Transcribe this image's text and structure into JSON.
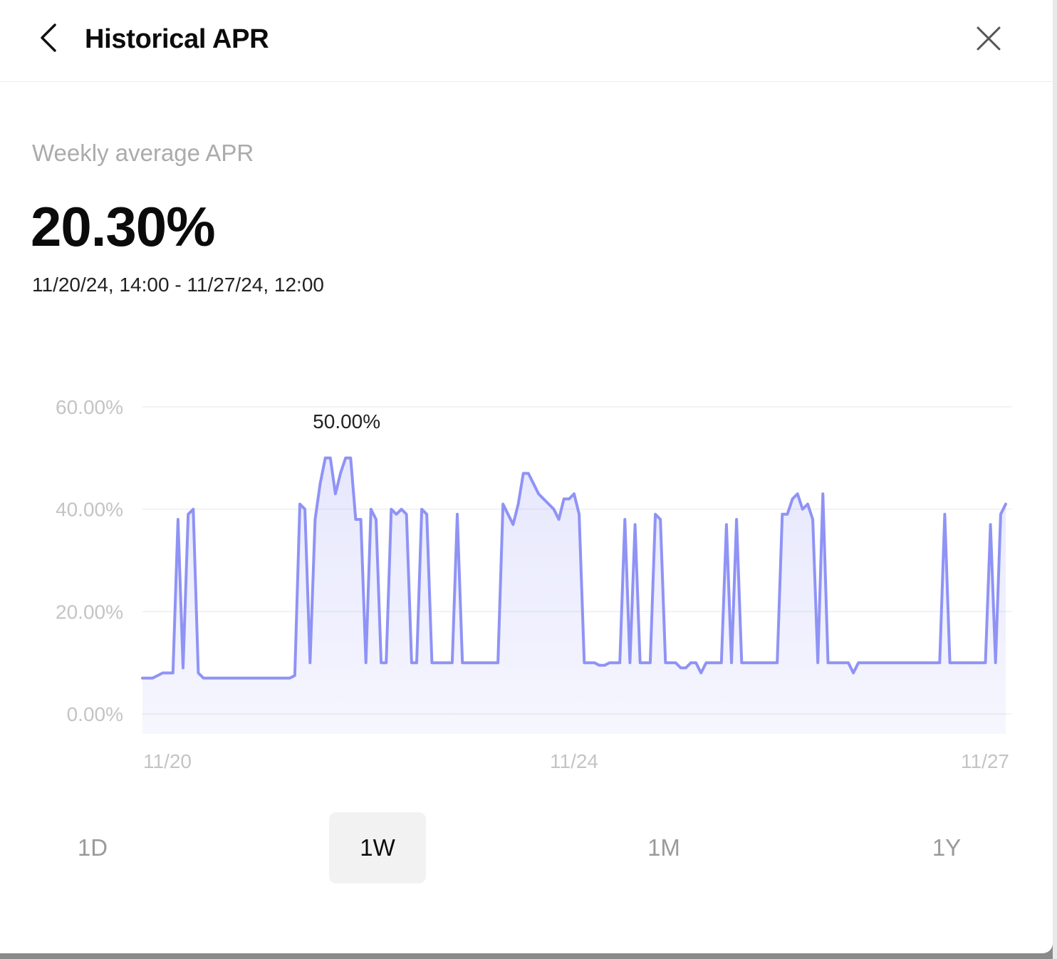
{
  "header": {
    "title": "Historical APR"
  },
  "summary": {
    "label": "Weekly average APR",
    "value": "20.30%",
    "date_range": "11/20/24, 14:00 - 11/27/24, 12:00"
  },
  "colors": {
    "line": "#8f93f5",
    "fill": "#eeefff",
    "grid": "#eeeeee",
    "axis_text": "#c4c4c4",
    "active_tab_bg": "#f2f2f2"
  },
  "chart_data": {
    "type": "area",
    "x_start": "11/20/24, 14:00",
    "x_end": "11/27/24, 12:00",
    "x_tick_labels": [
      "11/20",
      "11/24",
      "11/27"
    ],
    "y_tick_labels": [
      "60.00%",
      "40.00%",
      "20.00%",
      "0.00%"
    ],
    "ylim": [
      0,
      60
    ],
    "grid": true,
    "hover_label": "50.00%",
    "series": [
      {
        "values": [
          7,
          7,
          7,
          7.5,
          8,
          8,
          8,
          38,
          9,
          39,
          40,
          8,
          7,
          7,
          7,
          7,
          7,
          7,
          7,
          7,
          7,
          7,
          7,
          7,
          7,
          7,
          7,
          7,
          7,
          7,
          7.5,
          41,
          40,
          10,
          38,
          45,
          50,
          50,
          43,
          47,
          50,
          50,
          38,
          38,
          10,
          40,
          38,
          10,
          10,
          40,
          39,
          40,
          39,
          10,
          10,
          40,
          39,
          10,
          10,
          10,
          10,
          10,
          39,
          10,
          10,
          10,
          10,
          10,
          10,
          10,
          10,
          41,
          39,
          37,
          41,
          47,
          47,
          45,
          43,
          42,
          41,
          40,
          38,
          42,
          42,
          43,
          39,
          10,
          10,
          10,
          9.5,
          9.5,
          10,
          10,
          10,
          38,
          10,
          37,
          10,
          10,
          10,
          39,
          38,
          10,
          10,
          10,
          9,
          9,
          10,
          10,
          8,
          10,
          10,
          10,
          10,
          37,
          10,
          38,
          10,
          10,
          10,
          10,
          10,
          10,
          10,
          10,
          39,
          39,
          42,
          43,
          40,
          41,
          38,
          10,
          43,
          10,
          10,
          10,
          10,
          10,
          8,
          10,
          10,
          10,
          10,
          10,
          10,
          10,
          10,
          10,
          10,
          10,
          10,
          10,
          10,
          10,
          10,
          10,
          39,
          10,
          10,
          10,
          10,
          10,
          10,
          10,
          10,
          37,
          10,
          39,
          41
        ]
      }
    ]
  },
  "tabs": [
    {
      "label": "1D",
      "active": false
    },
    {
      "label": "1W",
      "active": true
    },
    {
      "label": "1M",
      "active": false
    },
    {
      "label": "1Y",
      "active": false
    }
  ]
}
